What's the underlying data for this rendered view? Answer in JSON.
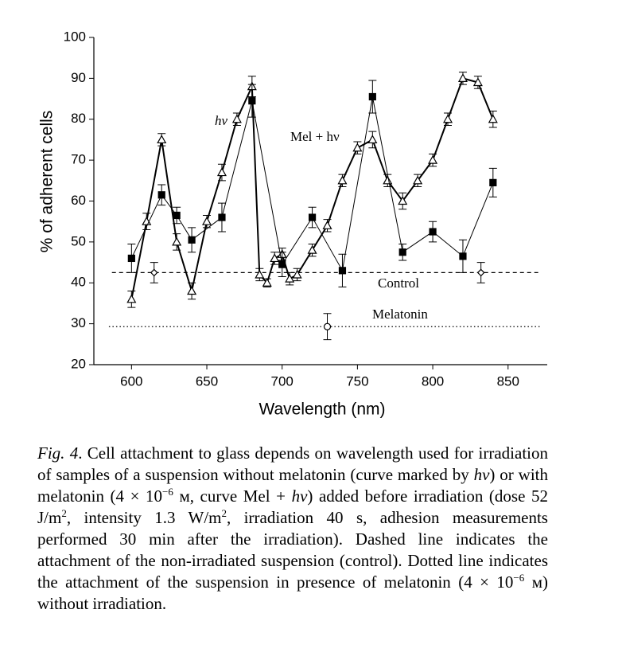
{
  "chart_data": {
    "type": "line",
    "x_label": "Wavelength (nm)",
    "y_label": "% of adherent cells",
    "xlim": [
      575,
      876
    ],
    "xticks": [
      600,
      650,
      700,
      750,
      800,
      850
    ],
    "ylim": [
      20,
      100
    ],
    "yticks": [
      20,
      30,
      40,
      50,
      60,
      70,
      80,
      90,
      100
    ],
    "series": [
      {
        "name": "hν",
        "marker": "triangle",
        "line_width": 2,
        "color": "#000",
        "x": [
          600,
          610,
          620,
          630,
          640,
          650,
          660,
          670,
          680,
          685,
          690,
          695,
          700,
          705,
          710,
          720,
          730,
          740,
          750,
          760,
          770,
          780,
          790,
          800,
          810,
          820,
          830,
          840
        ],
        "values": [
          36,
          55,
          75,
          50,
          38,
          55,
          67,
          80,
          88,
          42,
          40,
          46,
          47,
          41,
          42,
          48,
          54,
          65,
          73,
          75,
          65,
          60,
          65,
          70,
          80,
          90,
          89,
          80
        ],
        "errors": [
          2,
          2,
          1.5,
          2,
          2,
          1.5,
          2,
          1.5,
          2.5,
          1.5,
          1,
          1.5,
          1.5,
          1.5,
          1.5,
          1.5,
          1.5,
          1.5,
          1.5,
          2,
          1.5,
          2,
          1.5,
          1.5,
          1.5,
          1.5,
          1.5,
          2
        ]
      },
      {
        "name": "Mel + hν",
        "marker": "square",
        "line_width": 1,
        "color": "#000",
        "x": [
          600,
          620,
          630,
          640,
          660,
          680,
          700,
          720,
          740,
          760,
          780,
          800,
          820,
          840
        ],
        "values": [
          46,
          61.5,
          56.5,
          50.5,
          56,
          84.5,
          44.5,
          56,
          43,
          85.5,
          47.5,
          52.5,
          46.5,
          64.5
        ],
        "errors": [
          3.5,
          2.5,
          2,
          3,
          3.5,
          4,
          3,
          2.5,
          4,
          4,
          2,
          2.5,
          4,
          3.5
        ]
      },
      {
        "name": "Control",
        "marker": "diamond",
        "style": "dashed",
        "color": "#000",
        "level": 42.5,
        "level_x": [
          587,
          870
        ],
        "x": [
          615,
          832
        ],
        "values": [
          42.5,
          42.5
        ],
        "errors": [
          2.5,
          2.5
        ]
      },
      {
        "name": "Melatonin",
        "marker": "circle",
        "style": "dotted",
        "color": "#000",
        "level": 29.3,
        "level_x": [
          585,
          872
        ],
        "x": [
          730
        ],
        "values": [
          29.3
        ],
        "errors": [
          3.2
        ]
      }
    ]
  },
  "caption": [
    "Fig. 4",
    ". Cell attachment to glass depends on wavelength used for irradiation of samples of a suspension without melatonin (curve marked by ",
    "hν",
    ") or with melatonin (4 × 10",
    "−6",
    " м, curve Mel + ",
    "hν",
    ") added before irradiation (dose 52 J/m",
    "2",
    ", intensity 1.3 W/m",
    "2",
    ", irradiation 40 s, adhesion measurements performed 30 min after the irradiation). Dashed line indicates the attachment of the non-irradiated suspension (control). Dotted line indicates the attachment of the suspension in presence of melatonin (4 × 10",
    "−6",
    " м) without irradiation."
  ]
}
